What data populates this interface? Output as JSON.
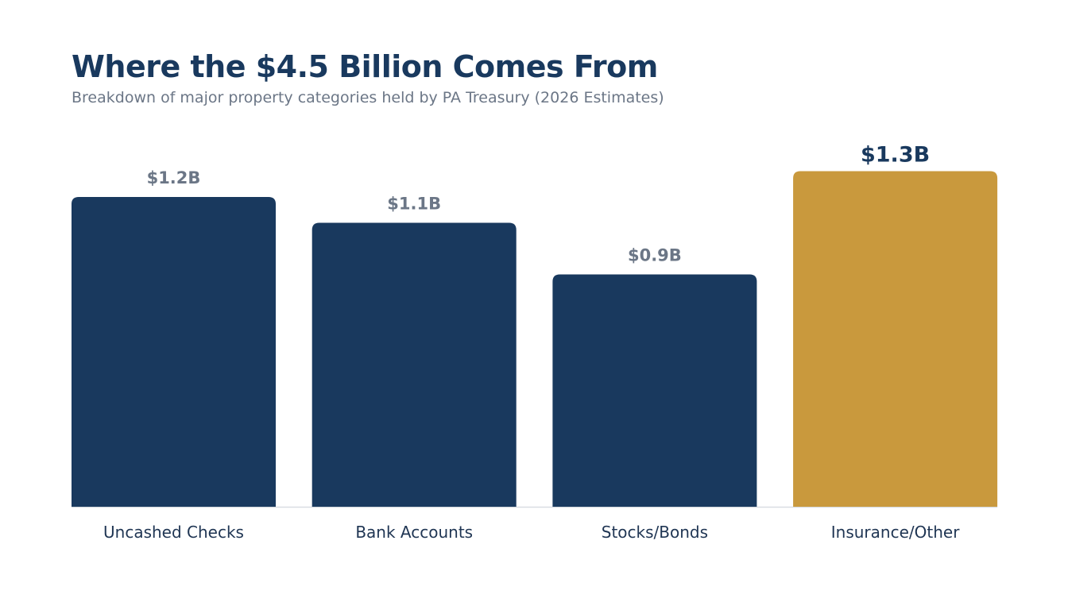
{
  "chart_data": {
    "type": "bar",
    "title": "Where the $4.5 Billion Comes From",
    "subtitle": "Breakdown of major property categories held by PA Treasury (2026 Estimates)",
    "categories": [
      "Uncashed Checks",
      "Bank Accounts",
      "Stocks/Bonds",
      "Insurance/Other"
    ],
    "values": [
      1.2,
      1.1,
      0.9,
      1.3
    ],
    "value_labels": [
      "$1.2B",
      "$1.1B",
      "$0.9B",
      "$1.3B"
    ],
    "unit": "Billion USD",
    "xlabel": "",
    "ylabel": "",
    "grid": false,
    "legend": "none",
    "highlight_index": 3,
    "colors": {
      "bar": "#19395e",
      "highlight": "#c9993d",
      "value_label": "#6b7686",
      "highlight_label": "#19395e",
      "baseline": "#d9dde2"
    }
  }
}
